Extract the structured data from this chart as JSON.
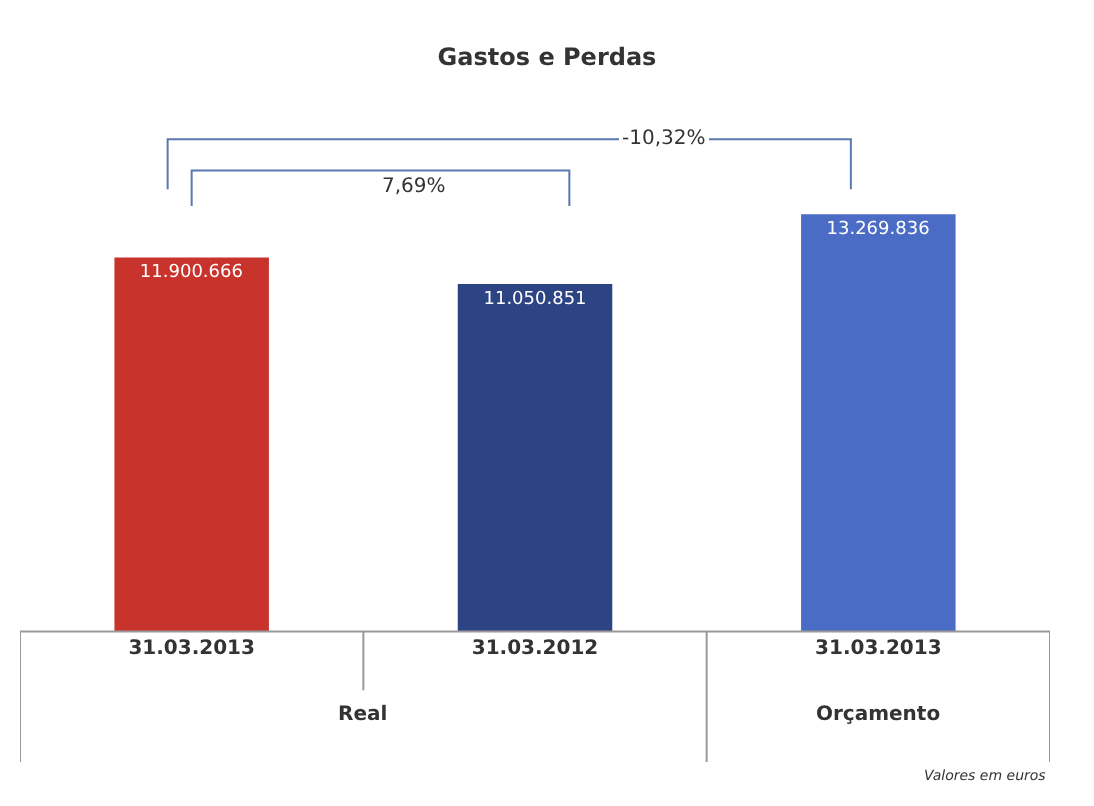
{
  "chart_data": {
    "type": "bar",
    "title": "Gastos e Perdas",
    "categories": [
      "31.03.2013",
      "31.03.2012",
      "31.03.2013"
    ],
    "values": [
      11900666,
      11050851,
      13269836
    ],
    "colors": [
      "#c8342c",
      "#2c4384",
      "#4a6cc4"
    ],
    "value_labels": [
      "11.900.666",
      "11.050.851",
      "13.269.836"
    ],
    "annotations": [
      "7,69%",
      "-10,32%",
      "Real",
      "Orçamento",
      "Valores em euros"
    ]
  }
}
